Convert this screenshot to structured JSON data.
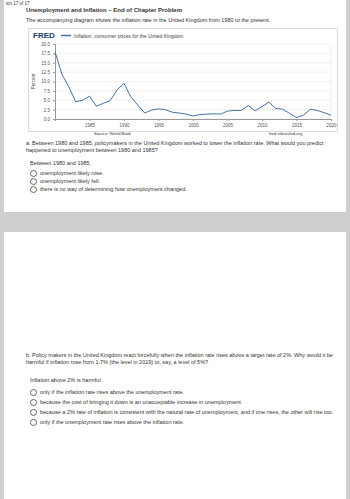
{
  "page": {
    "breadcrumb": "ion 17 of 17",
    "heading": "Unemployment and Inflation – End of Chapter Problem",
    "intro": "The accompanying diagram shows the inflation rate in the United Kingdom from 1980 to the present.",
    "fred_logo": "FRED",
    "chart_footer": "fred.stlouisfed.org",
    "question_a": {
      "prompt": "a. Between 1980 and 1985, policymakers in the United Kingdom worked to lower the inflation rate. What would you predict happened to unemployment between 1980 and 1985?",
      "stem": "Between 1980 and 1985,",
      "options": [
        "unemployment likely rose.",
        "unemployment likely fell.",
        "there is no way of determining how unemployment changed."
      ]
    },
    "question_b": {
      "prompt": "b. Policy makers in the United Kingdom react forcefully when the inflation rate rises above a target rate of 2%. Why would it be harmful if inflation rose from 1.7% (the level in 2019) to, say, a level of 5%?",
      "stem": "Inflation above 2% is harmful",
      "options": [
        "only if the inflation rate rises above the unemployment rate.",
        "because the cost of bringing it down is an unacceptable increase in unemployment.",
        "because a 2% rate of inflation is consistent with the natural rate of unemployment, and if one rises, the other will rise too.",
        "only if the unemployment rate rises above the inflation rate."
      ]
    }
  },
  "chart_data": {
    "type": "line",
    "y_label": "Percent",
    "source": "Source: World Bank",
    "x": [
      1980,
      1981,
      1982,
      1983,
      1984,
      1985,
      1986,
      1987,
      1988,
      1989,
      1990,
      1991,
      1992,
      1993,
      1994,
      1995,
      1996,
      1997,
      1998,
      1999,
      2000,
      2001,
      2002,
      2003,
      2004,
      2005,
      2006,
      2007,
      2008,
      2009,
      2010,
      2011,
      2012,
      2013,
      2014,
      2015,
      2016,
      2017,
      2018,
      2019,
      2020
    ],
    "series": [
      {
        "name": "Inflation, consumer prices for the United Kingdom",
        "color": "#4572a7",
        "values": [
          18.0,
          11.9,
          8.6,
          4.6,
          5.0,
          6.1,
          3.4,
          4.2,
          4.9,
          7.8,
          9.5,
          5.9,
          3.7,
          1.6,
          2.4,
          2.7,
          2.5,
          1.8,
          1.6,
          1.3,
          0.8,
          1.2,
          1.3,
          1.4,
          1.3,
          2.1,
          2.3,
          2.3,
          3.6,
          2.2,
          3.3,
          4.5,
          2.8,
          2.6,
          1.5,
          0.4,
          1.0,
          2.6,
          2.3,
          1.7,
          1.0
        ]
      }
    ],
    "xlim": [
      1980,
      2020
    ],
    "xticks": [
      1985,
      1990,
      1995,
      2000,
      2005,
      2010,
      2015,
      2020
    ],
    "ylim": [
      0,
      20
    ],
    "yticks": [
      {
        "value": 0,
        "label": "0.0"
      },
      {
        "value": 2.5,
        "label": "2.5"
      },
      {
        "value": 5,
        "label": "5.0"
      },
      {
        "value": 7.5,
        "label": "7.5"
      },
      {
        "value": 10,
        "label": "10.0"
      },
      {
        "value": 12.5,
        "label": "12.5"
      },
      {
        "value": 15,
        "label": "15.0"
      },
      {
        "value": 17.5,
        "label": "17.5"
      },
      {
        "value": 20,
        "label": "20.0"
      }
    ],
    "grid": true
  }
}
